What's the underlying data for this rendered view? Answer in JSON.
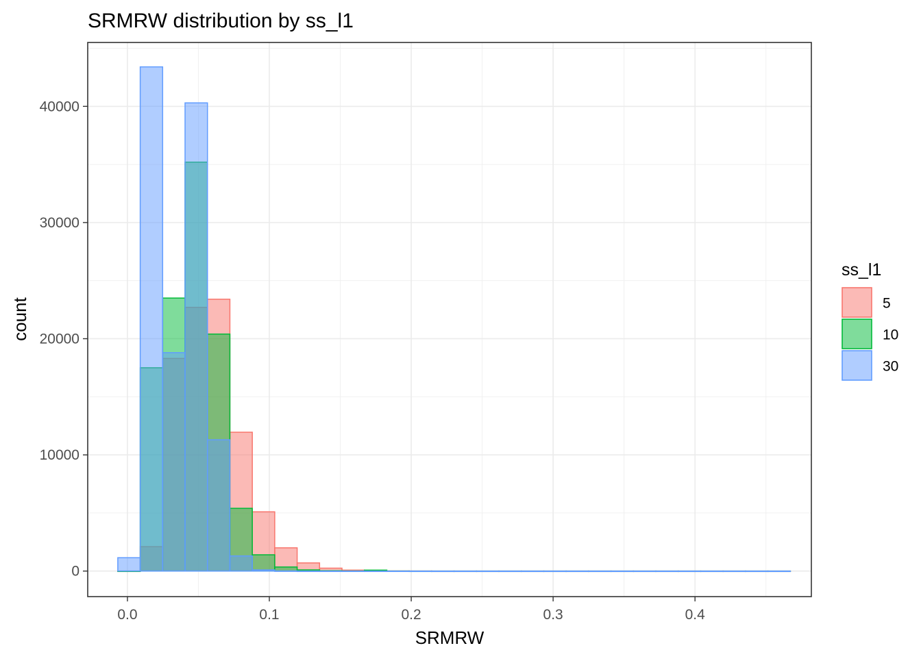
{
  "chart_data": {
    "type": "bar",
    "title": "SRMRW distribution by ss_l1",
    "xlabel": "SRMRW",
    "ylabel": "count",
    "xlim": [
      -0.028,
      0.482
    ],
    "ylim": [
      -2200,
      45500
    ],
    "x_ticks": [
      0.0,
      0.1,
      0.2,
      0.3,
      0.4
    ],
    "x_tick_labels": [
      "0.0",
      "0.1",
      "0.2",
      "0.3",
      "0.4"
    ],
    "y_ticks": [
      0,
      10000,
      20000,
      30000,
      40000
    ],
    "y_tick_labels": [
      "0",
      "10000",
      "20000",
      "30000",
      "40000"
    ],
    "grid": true,
    "legend": {
      "title": "ss_l1",
      "placement": "right"
    },
    "bin_width": 0.0158,
    "bin_start": -0.0068,
    "bin_count": 30,
    "series": [
      {
        "name": "5",
        "fill": "#F8766D",
        "stroke": "#F8766D",
        "values": [
          0,
          2100,
          18300,
          22700,
          23400,
          11950,
          5100,
          2000,
          700,
          250,
          80,
          30,
          10,
          5,
          0,
          0,
          0,
          0,
          0,
          0,
          0,
          0,
          0,
          0,
          0,
          0,
          0,
          0,
          0,
          0
        ]
      },
      {
        "name": "10",
        "fill": "#00BA38",
        "stroke": "#00BA38",
        "values": [
          0,
          17500,
          23500,
          35200,
          20400,
          5400,
          1400,
          350,
          100,
          30,
          10,
          80,
          5,
          0,
          0,
          0,
          0,
          0,
          0,
          0,
          0,
          0,
          0,
          0,
          0,
          0,
          0,
          0,
          0,
          0
        ]
      },
      {
        "name": "30",
        "fill": "#619CFF",
        "stroke": "#619CFF",
        "values": [
          1150,
          43400,
          18800,
          40300,
          11300,
          1300,
          100,
          10,
          0,
          0,
          0,
          0,
          0,
          0,
          0,
          0,
          0,
          0,
          0,
          0,
          0,
          0,
          0,
          0,
          0,
          0,
          0,
          0,
          0,
          0
        ]
      }
    ]
  }
}
